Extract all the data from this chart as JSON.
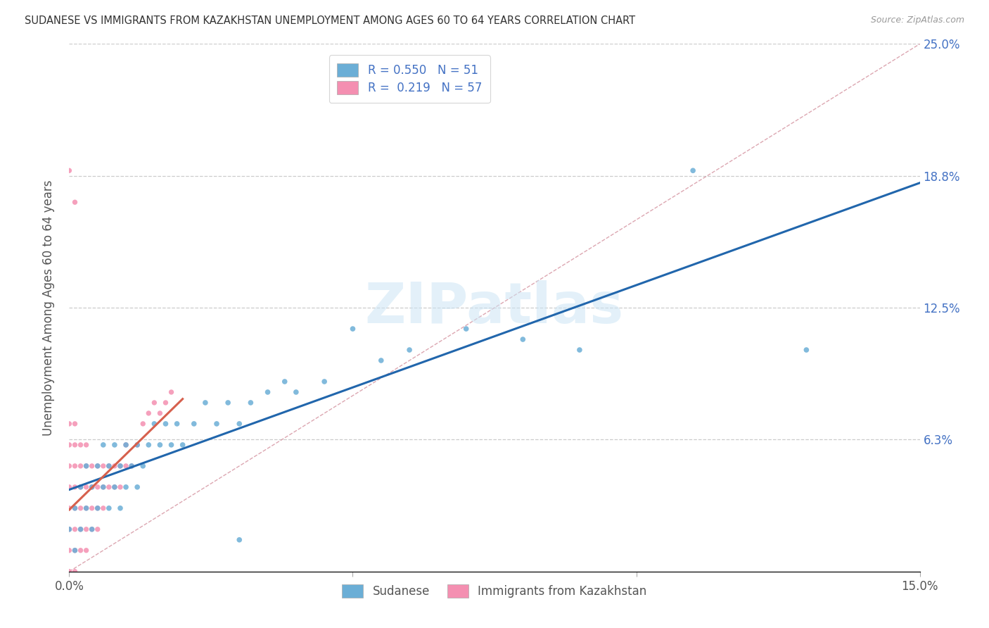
{
  "title": "SUDANESE VS IMMIGRANTS FROM KAZAKHSTAN UNEMPLOYMENT AMONG AGES 60 TO 64 YEARS CORRELATION CHART",
  "source": "Source: ZipAtlas.com",
  "ylabel": "Unemployment Among Ages 60 to 64 years",
  "xlim": [
    0.0,
    0.15
  ],
  "ylim": [
    0.0,
    0.25
  ],
  "xticks": [
    0.0,
    0.05,
    0.1,
    0.15
  ],
  "xticklabels": [
    "0.0%",
    "",
    "",
    "15.0%"
  ],
  "yticks_right": [
    0.0,
    0.0625,
    0.125,
    0.1875,
    0.25
  ],
  "yticklabels_right": [
    "",
    "6.3%",
    "12.5%",
    "18.8%",
    "25.0%"
  ],
  "watermark_text": "ZIPatlas",
  "legend_label1": "R = 0.550   N = 51",
  "legend_label2": "R =  0.219   N = 57",
  "sudanese_color": "#6baed6",
  "kazakhstan_color": "#f48fb1",
  "sudanese_line_color": "#2166ac",
  "kazakhstan_line_color": "#d6604d",
  "ref_line_color": "#d0a0a0",
  "sudanese_seed": 42,
  "kazakhstan_seed": 99,
  "bottom_legend_label1": "Sudanese",
  "bottom_legend_label2": "Immigrants from Kazakhstan",
  "sudanese_points": [
    [
      0.0,
      0.02
    ],
    [
      0.001,
      0.01
    ],
    [
      0.001,
      0.03
    ],
    [
      0.002,
      0.02
    ],
    [
      0.002,
      0.04
    ],
    [
      0.003,
      0.03
    ],
    [
      0.003,
      0.05
    ],
    [
      0.004,
      0.02
    ],
    [
      0.004,
      0.04
    ],
    [
      0.005,
      0.03
    ],
    [
      0.005,
      0.05
    ],
    [
      0.006,
      0.04
    ],
    [
      0.006,
      0.06
    ],
    [
      0.007,
      0.03
    ],
    [
      0.007,
      0.05
    ],
    [
      0.008,
      0.04
    ],
    [
      0.008,
      0.06
    ],
    [
      0.009,
      0.03
    ],
    [
      0.009,
      0.05
    ],
    [
      0.01,
      0.04
    ],
    [
      0.01,
      0.06
    ],
    [
      0.011,
      0.05
    ],
    [
      0.012,
      0.04
    ],
    [
      0.012,
      0.06
    ],
    [
      0.013,
      0.05
    ],
    [
      0.014,
      0.06
    ],
    [
      0.015,
      0.07
    ],
    [
      0.016,
      0.06
    ],
    [
      0.017,
      0.07
    ],
    [
      0.018,
      0.06
    ],
    [
      0.019,
      0.07
    ],
    [
      0.02,
      0.06
    ],
    [
      0.022,
      0.07
    ],
    [
      0.024,
      0.08
    ],
    [
      0.026,
      0.07
    ],
    [
      0.028,
      0.08
    ],
    [
      0.03,
      0.07
    ],
    [
      0.032,
      0.08
    ],
    [
      0.035,
      0.085
    ],
    [
      0.038,
      0.09
    ],
    [
      0.04,
      0.085
    ],
    [
      0.045,
      0.09
    ],
    [
      0.05,
      0.115
    ],
    [
      0.055,
      0.1
    ],
    [
      0.06,
      0.105
    ],
    [
      0.07,
      0.115
    ],
    [
      0.08,
      0.11
    ],
    [
      0.09,
      0.105
    ],
    [
      0.11,
      0.19
    ],
    [
      0.13,
      0.105
    ],
    [
      0.03,
      0.015
    ]
  ],
  "kazakhstan_points": [
    [
      0.0,
      0.0
    ],
    [
      0.0,
      0.01
    ],
    [
      0.0,
      0.02
    ],
    [
      0.0,
      0.03
    ],
    [
      0.0,
      0.04
    ],
    [
      0.0,
      0.05
    ],
    [
      0.0,
      0.06
    ],
    [
      0.0,
      0.07
    ],
    [
      0.001,
      0.0
    ],
    [
      0.001,
      0.01
    ],
    [
      0.001,
      0.02
    ],
    [
      0.001,
      0.03
    ],
    [
      0.001,
      0.04
    ],
    [
      0.001,
      0.05
    ],
    [
      0.001,
      0.06
    ],
    [
      0.001,
      0.07
    ],
    [
      0.002,
      0.01
    ],
    [
      0.002,
      0.02
    ],
    [
      0.002,
      0.03
    ],
    [
      0.002,
      0.04
    ],
    [
      0.002,
      0.05
    ],
    [
      0.002,
      0.06
    ],
    [
      0.003,
      0.01
    ],
    [
      0.003,
      0.02
    ],
    [
      0.003,
      0.03
    ],
    [
      0.003,
      0.04
    ],
    [
      0.003,
      0.05
    ],
    [
      0.003,
      0.06
    ],
    [
      0.004,
      0.02
    ],
    [
      0.004,
      0.03
    ],
    [
      0.004,
      0.04
    ],
    [
      0.004,
      0.05
    ],
    [
      0.005,
      0.02
    ],
    [
      0.005,
      0.03
    ],
    [
      0.005,
      0.04
    ],
    [
      0.005,
      0.05
    ],
    [
      0.006,
      0.03
    ],
    [
      0.006,
      0.04
    ],
    [
      0.006,
      0.05
    ],
    [
      0.007,
      0.04
    ],
    [
      0.007,
      0.05
    ],
    [
      0.008,
      0.04
    ],
    [
      0.008,
      0.05
    ],
    [
      0.009,
      0.04
    ],
    [
      0.009,
      0.05
    ],
    [
      0.01,
      0.05
    ],
    [
      0.01,
      0.06
    ],
    [
      0.011,
      0.05
    ],
    [
      0.012,
      0.06
    ],
    [
      0.013,
      0.07
    ],
    [
      0.014,
      0.075
    ],
    [
      0.015,
      0.08
    ],
    [
      0.016,
      0.075
    ],
    [
      0.017,
      0.08
    ],
    [
      0.0,
      0.19
    ],
    [
      0.001,
      0.175
    ],
    [
      0.018,
      0.085
    ]
  ]
}
